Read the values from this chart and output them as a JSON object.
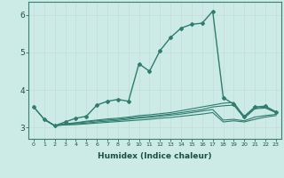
{
  "xlabel": "Humidex (Indice chaleur)",
  "bg_color": "#cceae6",
  "grid_color": "#c8deda",
  "line_color": "#2e7d6e",
  "xlim": [
    -0.5,
    23.5
  ],
  "ylim": [
    2.7,
    6.35
  ],
  "xticks": [
    0,
    1,
    2,
    3,
    4,
    5,
    6,
    7,
    8,
    9,
    10,
    11,
    12,
    13,
    14,
    15,
    16,
    17,
    18,
    19,
    20,
    21,
    22,
    23
  ],
  "yticks": [
    3,
    4,
    5,
    6
  ],
  "lines": [
    {
      "x": [
        0,
        1,
        2,
        3,
        4,
        5,
        6,
        7,
        8,
        9,
        10,
        11,
        12,
        13,
        14,
        15,
        16,
        17,
        18,
        19,
        20,
        21,
        22,
        23
      ],
      "y": [
        3.55,
        3.22,
        3.05,
        3.15,
        3.25,
        3.3,
        3.6,
        3.7,
        3.75,
        3.7,
        4.7,
        4.5,
        5.05,
        5.4,
        5.65,
        5.75,
        5.78,
        6.1,
        3.8,
        3.62,
        3.3,
        3.55,
        3.57,
        3.42
      ],
      "marker": "D",
      "markersize": 2.0,
      "linewidth": 1.0
    },
    {
      "x": [
        0,
        1,
        2,
        3,
        4,
        5,
        6,
        7,
        8,
        9,
        10,
        11,
        12,
        13,
        14,
        15,
        16,
        17,
        18,
        19,
        20,
        21,
        22,
        23
      ],
      "y": [
        3.55,
        3.22,
        3.05,
        3.1,
        3.13,
        3.17,
        3.2,
        3.23,
        3.25,
        3.28,
        3.32,
        3.34,
        3.37,
        3.4,
        3.45,
        3.5,
        3.55,
        3.6,
        3.65,
        3.67,
        3.28,
        3.52,
        3.55,
        3.4
      ],
      "marker": null,
      "linewidth": 0.8
    },
    {
      "x": [
        1,
        2,
        3,
        4,
        5,
        6,
        7,
        8,
        9,
        10,
        11,
        12,
        13,
        14,
        15,
        16,
        17,
        18,
        19,
        20,
        21,
        22,
        23
      ],
      "y": [
        3.22,
        3.05,
        3.1,
        3.12,
        3.15,
        3.18,
        3.2,
        3.22,
        3.25,
        3.28,
        3.3,
        3.33,
        3.36,
        3.4,
        3.44,
        3.48,
        3.55,
        3.58,
        3.6,
        3.25,
        3.5,
        3.52,
        3.4
      ],
      "marker": null,
      "linewidth": 0.8
    },
    {
      "x": [
        1,
        2,
        3,
        4,
        5,
        6,
        7,
        8,
        9,
        10,
        11,
        12,
        13,
        14,
        15,
        16,
        17,
        18,
        19,
        20,
        21,
        22,
        23
      ],
      "y": [
        3.22,
        3.05,
        3.08,
        3.1,
        3.12,
        3.15,
        3.17,
        3.19,
        3.22,
        3.25,
        3.27,
        3.3,
        3.33,
        3.36,
        3.4,
        3.44,
        3.48,
        3.2,
        3.22,
        3.18,
        3.28,
        3.32,
        3.35
      ],
      "marker": null,
      "linewidth": 0.8
    },
    {
      "x": [
        1,
        2,
        3,
        4,
        5,
        6,
        7,
        8,
        9,
        10,
        11,
        12,
        13,
        14,
        15,
        16,
        17,
        18,
        19,
        20,
        21,
        22,
        23
      ],
      "y": [
        3.22,
        3.05,
        3.07,
        3.08,
        3.1,
        3.12,
        3.14,
        3.16,
        3.18,
        3.2,
        3.22,
        3.25,
        3.27,
        3.3,
        3.33,
        3.36,
        3.4,
        3.15,
        3.18,
        3.15,
        3.22,
        3.28,
        3.32
      ],
      "marker": null,
      "linewidth": 0.8
    }
  ]
}
